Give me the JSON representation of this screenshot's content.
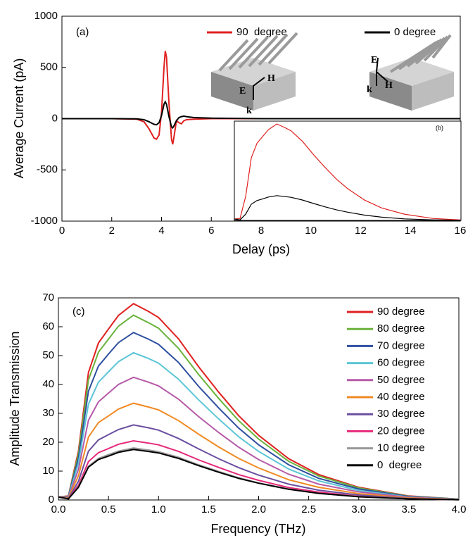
{
  "chart_data": [
    {
      "type": "line",
      "panel_label": "(a)",
      "x_label": "Delay (ps)",
      "y_label": "Average Current (pA)",
      "xlim": [
        0,
        16
      ],
      "xticks": [
        0,
        2,
        4,
        6,
        8,
        10,
        12,
        14,
        16
      ],
      "ylim": [
        -1000,
        1000
      ],
      "yticks": [
        -1000,
        -500,
        0,
        500,
        1000
      ],
      "x": [
        0,
        1,
        2,
        3,
        3.3,
        3.5,
        3.7,
        3.8,
        3.9,
        4.0,
        4.1,
        4.15,
        4.2,
        4.3,
        4.4,
        4.45,
        4.5,
        4.6,
        4.7,
        4.8,
        4.9,
        5.0,
        5.3,
        6,
        8,
        10,
        12,
        14,
        16
      ],
      "series": [
        {
          "name": "90  degree",
          "color": "#e02020",
          "values": [
            0,
            0,
            0,
            -5,
            -30,
            -100,
            -190,
            -200,
            -160,
            60,
            500,
            660,
            600,
            150,
            -200,
            -250,
            -180,
            -20,
            -40,
            -50,
            -20,
            -10,
            -5,
            0,
            0,
            0,
            0,
            0,
            0
          ]
        },
        {
          "name": "0 degree",
          "color": "#000000",
          "values": [
            0,
            0,
            0,
            -2,
            -10,
            -30,
            -55,
            -60,
            -40,
            30,
            140,
            165,
            140,
            20,
            -80,
            -90,
            -70,
            -20,
            10,
            20,
            25,
            20,
            10,
            5,
            0,
            0,
            0,
            0,
            0
          ]
        }
      ],
      "diagram_labels": [
        [
          "E",
          "H",
          "k"
        ],
        [
          "E",
          "H",
          "k"
        ]
      ]
    },
    {
      "type": "line",
      "panel_label": "(b)",
      "xlim": [
        0,
        4
      ],
      "ylim": [
        0,
        70
      ],
      "x": [
        0,
        0.1,
        0.2,
        0.3,
        0.4,
        0.5,
        0.6,
        0.75,
        0.9,
        1.0,
        1.2,
        1.4,
        1.6,
        1.8,
        2.0,
        2.3,
        2.6,
        3.0,
        3.5,
        4.0
      ],
      "series": [
        {
          "color": "#e02020",
          "values": [
            1,
            1.4,
            17,
            44.2,
            54.4,
            59.2,
            63.9,
            68,
            65.3,
            63.2,
            55.8,
            46.2,
            37.4,
            29.2,
            22.4,
            14.3,
            8.8,
            4.4,
            1.4,
            0.3
          ]
        },
        {
          "color": "#000000",
          "values": [
            1,
            0.4,
            4.4,
            11.4,
            14,
            15.2,
            16.5,
            17.5,
            16.8,
            16.3,
            14.4,
            11.9,
            9.6,
            7.5,
            5.8,
            3.7,
            2.3,
            1.1,
            0.4,
            0.1
          ]
        }
      ]
    },
    {
      "type": "line",
      "panel_label": "(c)",
      "x_label": "Frequency (THz)",
      "y_label": "Amplitude Transmission",
      "xlim": [
        0,
        4
      ],
      "xticks": [
        {
          "value": 0,
          "label": "0.0"
        },
        0.5,
        {
          "value": 1,
          "label": "1.0"
        },
        1.5,
        {
          "value": 2,
          "label": "2.0"
        },
        2.5,
        {
          "value": 3,
          "label": "3.0"
        },
        3.5,
        {
          "value": 4,
          "label": "4.0"
        }
      ],
      "ylim": [
        0,
        70
      ],
      "yticks": [
        0,
        10,
        20,
        30,
        40,
        50,
        60,
        70
      ],
      "x": [
        0,
        0.1,
        0.2,
        0.3,
        0.4,
        0.5,
        0.6,
        0.75,
        0.9,
        1.0,
        1.2,
        1.4,
        1.6,
        1.8,
        2.0,
        2.3,
        2.6,
        3.0,
        3.5,
        4.0
      ],
      "series": [
        {
          "name": "90 degree",
          "color": "#e02020",
          "values": [
            1,
            1.4,
            17,
            44.2,
            54.4,
            59.2,
            63.9,
            68,
            65.3,
            63.2,
            55.8,
            46.2,
            37.4,
            29.2,
            22.4,
            14.3,
            8.8,
            4.4,
            1.4,
            0.3
          ]
        },
        {
          "name": "80 degree",
          "color": "#6ab33c",
          "values": [
            1,
            1.3,
            16,
            41.6,
            51.2,
            55.7,
            60.2,
            64,
            61.4,
            59.5,
            52.5,
            43.5,
            35.2,
            27.5,
            21.1,
            13.4,
            8.3,
            4.2,
            1.3,
            0.3
          ]
        },
        {
          "name": "70 degree",
          "color": "#2e4fa0",
          "values": [
            1,
            1.2,
            14.5,
            37.7,
            46.4,
            50.5,
            54.5,
            58,
            55.7,
            53.9,
            47.6,
            39.4,
            31.9,
            24.9,
            19.1,
            12.2,
            7.5,
            3.8,
            1.2,
            0.3
          ]
        },
        {
          "name": "60 degree",
          "color": "#5bc6d6",
          "values": [
            1,
            1,
            12.8,
            33.2,
            40.8,
            44.4,
            47.9,
            51,
            49,
            47.4,
            41.8,
            34.7,
            28.1,
            21.9,
            16.8,
            10.7,
            6.6,
            3.3,
            1,
            0.3
          ]
        },
        {
          "name": "50 degree",
          "color": "#b65aa8",
          "values": [
            1,
            0.9,
            10.6,
            27.6,
            34,
            37,
            40,
            42.5,
            40.8,
            39.5,
            34.9,
            28.9,
            23.4,
            18.3,
            14,
            8.9,
            5.5,
            2.8,
            0.9,
            0.2
          ]
        },
        {
          "name": "40 degree",
          "color": "#f08a24",
          "values": [
            1,
            0.7,
            8.4,
            21.8,
            26.8,
            29.1,
            31.5,
            33.5,
            32.2,
            31.2,
            27.5,
            22.8,
            18.4,
            14.4,
            11.1,
            7,
            4.4,
            2.2,
            0.7,
            0.2
          ]
        },
        {
          "name": "30 degree",
          "color": "#6a4fa0",
          "values": [
            1,
            0.5,
            6.5,
            16.9,
            20.8,
            22.6,
            24.4,
            26,
            25,
            24.2,
            21.3,
            17.7,
            14.3,
            11.2,
            8.6,
            5.5,
            3.4,
            1.7,
            0.5,
            0.1
          ]
        },
        {
          "name": "20 degree",
          "color": "#e6287a",
          "values": [
            1,
            0.4,
            5.1,
            13.3,
            16.4,
            17.8,
            19.3,
            20.5,
            19.7,
            19.1,
            16.8,
            13.9,
            11.3,
            8.8,
            6.8,
            4.3,
            2.7,
            1.3,
            0.4,
            0.1
          ]
        },
        {
          "name": "10 degree",
          "color": "#999999",
          "values": [
            1,
            0.4,
            4.5,
            11.7,
            14.4,
            15.7,
            16.9,
            18,
            17.3,
            16.7,
            14.8,
            12.2,
            9.9,
            7.7,
            5.9,
            3.8,
            2.3,
            1.2,
            0.4,
            0.1
          ]
        },
        {
          "name": "0  degree",
          "color": "#000000",
          "values": [
            1,
            0.4,
            4.4,
            11.4,
            14,
            15.2,
            16.5,
            17.5,
            16.8,
            16.3,
            14.4,
            11.9,
            9.6,
            7.5,
            5.8,
            3.7,
            2.3,
            1.1,
            0.4,
            0.1
          ]
        }
      ]
    }
  ]
}
